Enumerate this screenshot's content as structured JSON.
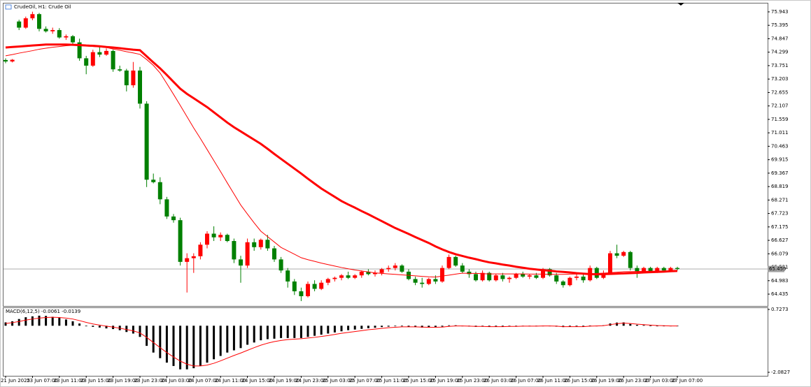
{
  "chart_data": [
    {
      "type": "candlestick",
      "title": "CrudeOil, H1:  Crude Oil",
      "open": [
        73.98,
        73.92,
        75.55,
        75.3,
        75.68,
        75.85,
        75.25,
        75.15,
        75.2,
        74.9,
        74.95,
        74.7,
        74.05,
        73.75,
        74.3,
        74.2,
        74.35,
        73.6,
        73.55,
        72.95,
        73.55,
        72.2,
        69.1,
        69.0,
        68.3,
        67.6,
        67.45,
        65.75,
        65.9,
        65.98,
        66.45,
        66.9,
        66.75,
        66.85,
        66.6,
        65.85,
        65.6,
        66.55,
        66.35,
        66.65,
        66.3,
        65.85,
        65.4,
        64.95,
        64.55,
        64.35,
        64.85,
        64.65,
        64.9,
        65.05,
        65.1,
        65.2,
        65.1,
        65.2,
        65.35,
        65.25,
        65.3,
        65.45,
        65.5,
        65.6,
        65.35,
        65.05,
        64.9,
        64.85,
        65.05,
        64.95,
        65.5,
        65.95,
        65.6,
        65.35,
        65.25,
        65.0,
        65.3,
        65.0,
        65.2,
        65.05,
        65.1,
        65.25,
        65.15,
        65.2,
        65.1,
        65.45,
        65.2,
        64.95,
        64.8,
        65.1,
        65.15,
        65.0,
        65.5,
        65.1,
        65.3,
        66.1,
        66.0,
        66.15,
        65.5,
        65.35,
        65.5,
        65.35,
        65.5,
        65.4,
        65.5
      ],
      "high": [
        74.05,
        74.02,
        75.62,
        75.75,
        75.95,
        75.9,
        75.35,
        75.3,
        75.28,
        75.02,
        75.0,
        74.85,
        74.15,
        74.4,
        74.55,
        74.45,
        74.4,
        73.75,
        73.62,
        73.9,
        73.7,
        72.3,
        69.35,
        69.2,
        68.4,
        67.7,
        67.55,
        66.1,
        66.1,
        66.55,
        67.0,
        67.2,
        66.95,
        66.9,
        66.7,
        66.0,
        66.7,
        66.7,
        66.7,
        66.85,
        66.4,
        65.95,
        65.5,
        65.05,
        64.7,
        64.95,
        65.0,
        65.0,
        65.1,
        65.15,
        65.25,
        65.35,
        65.25,
        65.4,
        65.45,
        65.4,
        65.5,
        65.6,
        65.7,
        65.65,
        65.45,
        65.15,
        65.1,
        65.1,
        65.2,
        65.6,
        66.05,
        66.0,
        65.7,
        65.45,
        65.35,
        65.4,
        65.35,
        65.25,
        65.3,
        65.15,
        65.3,
        65.35,
        65.25,
        65.3,
        65.5,
        65.5,
        65.3,
        65.0,
        65.15,
        65.25,
        65.3,
        65.6,
        65.55,
        65.4,
        66.2,
        66.45,
        66.2,
        66.2,
        65.6,
        65.55,
        65.55,
        65.55,
        65.55,
        65.55,
        65.55
      ],
      "low": [
        73.85,
        73.88,
        75.2,
        75.25,
        75.6,
        75.15,
        75.1,
        75.05,
        74.85,
        74.8,
        74.6,
        73.95,
        73.4,
        73.7,
        74.1,
        74.15,
        73.5,
        73.5,
        72.7,
        72.85,
        72.0,
        68.8,
        68.95,
        68.1,
        67.5,
        67.35,
        65.6,
        64.5,
        65.3,
        65.85,
        66.3,
        66.6,
        66.6,
        66.55,
        65.7,
        64.9,
        65.5,
        66.2,
        66.25,
        66.2,
        65.75,
        65.3,
        64.7,
        64.4,
        64.15,
        64.3,
        64.55,
        64.6,
        64.8,
        64.95,
        65.0,
        65.05,
        65.05,
        65.1,
        65.2,
        65.15,
        65.2,
        65.35,
        65.4,
        65.3,
        65.0,
        64.8,
        64.7,
        64.8,
        64.85,
        64.9,
        65.45,
        65.55,
        65.3,
        65.1,
        64.95,
        64.95,
        64.95,
        64.95,
        64.95,
        64.9,
        65.05,
        65.1,
        65.05,
        65.05,
        65.05,
        65.15,
        64.85,
        64.7,
        64.75,
        65.0,
        64.9,
        64.95,
        65.05,
        65.05,
        65.25,
        65.9,
        65.95,
        65.4,
        65.1,
        65.3,
        65.3,
        65.3,
        65.35,
        65.35,
        65.4
      ],
      "close": [
        73.92,
        73.99,
        75.3,
        75.68,
        75.85,
        75.25,
        75.15,
        75.2,
        74.9,
        74.95,
        74.7,
        74.05,
        73.75,
        74.3,
        74.2,
        74.35,
        73.6,
        73.55,
        72.95,
        73.55,
        72.2,
        69.1,
        69.0,
        68.3,
        67.6,
        67.45,
        65.75,
        65.9,
        65.98,
        66.45,
        66.9,
        66.75,
        66.85,
        66.6,
        65.85,
        65.6,
        66.55,
        66.35,
        66.65,
        66.3,
        65.85,
        65.4,
        64.95,
        64.55,
        64.35,
        64.85,
        64.65,
        64.9,
        65.05,
        65.1,
        65.2,
        65.1,
        65.2,
        65.35,
        65.25,
        65.3,
        65.45,
        65.5,
        65.6,
        65.35,
        65.05,
        64.9,
        64.85,
        65.05,
        64.95,
        65.5,
        65.95,
        65.6,
        65.35,
        65.25,
        65.0,
        65.3,
        65.0,
        65.2,
        65.05,
        65.1,
        65.25,
        65.15,
        65.2,
        65.1,
        65.45,
        65.2,
        64.95,
        64.8,
        65.1,
        65.15,
        65.0,
        65.5,
        65.1,
        65.3,
        66.1,
        66.0,
        66.15,
        65.5,
        65.35,
        65.5,
        65.35,
        65.5,
        65.4,
        65.5,
        65.46
      ],
      "up_color": "#ff0000",
      "down_color": "#008000",
      "overlays": [
        {
          "color": "#ff0000",
          "values": [
            74.49,
            74.51,
            74.53,
            74.55,
            74.57,
            74.59,
            74.61,
            74.61,
            74.61,
            74.61,
            74.6,
            74.59,
            74.57,
            74.56,
            74.54,
            74.51,
            74.49,
            74.46,
            74.43,
            74.4,
            74.38,
            74.13,
            73.88,
            73.64,
            73.37,
            73.09,
            72.81,
            72.6,
            72.42,
            72.24,
            72.06,
            71.85,
            71.64,
            71.43,
            71.24,
            71.07,
            70.9,
            70.73,
            70.56,
            70.36,
            70.15,
            69.95,
            69.75,
            69.55,
            69.35,
            69.14,
            68.94,
            68.74,
            68.57,
            68.4,
            68.23,
            68.09,
            67.96,
            67.82,
            67.69,
            67.55,
            67.41,
            67.27,
            67.13,
            67.01,
            66.89,
            66.76,
            66.64,
            66.52,
            66.38,
            66.26,
            66.15,
            66.06,
            65.99,
            65.92,
            65.86,
            65.79,
            65.73,
            65.69,
            65.64,
            65.6,
            65.55,
            65.51,
            65.47,
            65.44,
            65.41,
            65.39,
            65.36,
            65.34,
            65.32,
            65.29,
            65.27,
            65.25,
            65.24,
            65.25,
            65.26,
            65.27,
            65.28,
            65.29,
            65.3,
            65.32,
            65.33,
            65.34,
            65.35,
            65.37,
            65.38
          ]
        },
        {
          "color": "#ff0000",
          "values": [
            74.15,
            74.2,
            74.26,
            74.31,
            74.36,
            74.42,
            74.46,
            74.5,
            74.53,
            74.56,
            74.58,
            74.56,
            74.55,
            74.53,
            74.51,
            74.49,
            74.43,
            74.38,
            74.32,
            74.27,
            74.21,
            74.0,
            73.76,
            73.45,
            73.02,
            72.58,
            72.13,
            71.67,
            71.21,
            70.78,
            70.33,
            69.88,
            69.43,
            68.97,
            68.52,
            68.07,
            67.7,
            67.34,
            67.0,
            66.78,
            66.56,
            66.34,
            66.2,
            66.06,
            65.92,
            65.84,
            65.77,
            65.7,
            65.64,
            65.58,
            65.52,
            65.47,
            65.42,
            65.38,
            65.34,
            65.3,
            65.28,
            65.26,
            65.24,
            65.22,
            65.2,
            65.18,
            65.16,
            65.14,
            65.13,
            65.17,
            65.21,
            65.25,
            65.29,
            65.28,
            65.28,
            65.27,
            65.26,
            65.26,
            65.26,
            65.26,
            65.26,
            65.26,
            65.25,
            65.25,
            65.25,
            65.24,
            65.24,
            65.24,
            65.25,
            65.25,
            65.25,
            65.26,
            65.28,
            65.29,
            65.31,
            65.33,
            65.35,
            65.35,
            65.36,
            65.37,
            65.37,
            65.38,
            65.38,
            65.39,
            65.4
          ]
        }
      ],
      "current_price": 65.459,
      "current_color": "#a0a0a0",
      "ylim": [
        63.952,
        76.284
      ],
      "yticks": [
        75.943,
        75.395,
        74.847,
        74.299,
        73.751,
        73.203,
        72.655,
        72.107,
        71.559,
        71.011,
        70.463,
        69.915,
        69.367,
        68.819,
        68.271,
        67.723,
        67.175,
        66.627,
        66.079,
        65.531,
        64.983,
        64.435
      ]
    },
    {
      "type": "macd",
      "title": "MACD(6,12,5) -0.0061 -0.0139",
      "color": "#000000",
      "categories": [
        "21 Jun 2025",
        null,
        null,
        null,
        "23 Jun 07:00",
        null,
        null,
        null,
        "23 Jun 11:00",
        null,
        null,
        null,
        "23 Jun 15:00",
        null,
        null,
        null,
        "23 Jun 19:00",
        null,
        null,
        null,
        "23 Jun 23:00",
        null,
        null,
        null,
        "24 Jun 03:00",
        null,
        null,
        null,
        "24 Jun 07:00",
        null,
        null,
        null,
        "24 Jun 11:00",
        null,
        null,
        null,
        "24 Jun 15:00",
        null,
        null,
        null,
        "24 Jun 19:00",
        null,
        null,
        null,
        "24 Jun 23:00",
        null,
        null,
        null,
        "25 Jun 03:00",
        null,
        null,
        null,
        "25 Jun 07:00",
        null,
        null,
        null,
        "25 Jun 11:00",
        null,
        null,
        null,
        "25 Jun 15:00",
        null,
        null,
        null,
        "25 Jun 19:00",
        null,
        null,
        null,
        "25 Jun 23:00",
        null,
        null,
        null,
        "26 Jun 03:00",
        null,
        null,
        null,
        "26 Jun 07:00",
        null,
        null,
        null,
        "26 Jun 11:00",
        null,
        null,
        null,
        "26 Jun 15:00",
        null,
        null,
        null,
        "26 Jun 19:00",
        null,
        null,
        null,
        "26 Jun 23:00",
        null,
        null,
        null,
        "27 Jun 03:00",
        null,
        null,
        null,
        "27 Jun 07:00"
      ],
      "values": [
        0.15,
        0.2,
        0.3,
        0.38,
        0.42,
        0.45,
        0.44,
        0.4,
        0.35,
        0.28,
        0.2,
        0.1,
        0.0,
        -0.05,
        -0.08,
        -0.12,
        -0.15,
        -0.2,
        -0.28,
        -0.35,
        -0.5,
        -0.9,
        -1.2,
        -1.45,
        -1.65,
        -1.8,
        -1.95,
        -1.95,
        -1.9,
        -1.8,
        -1.65,
        -1.5,
        -1.35,
        -1.2,
        -1.1,
        -1.0,
        -0.85,
        -0.75,
        -0.65,
        -0.6,
        -0.58,
        -0.55,
        -0.55,
        -0.55,
        -0.55,
        -0.5,
        -0.45,
        -0.4,
        -0.35,
        -0.3,
        -0.25,
        -0.2,
        -0.17,
        -0.14,
        -0.11,
        -0.09,
        -0.06,
        -0.04,
        -0.02,
        -0.02,
        -0.04,
        -0.06,
        -0.08,
        -0.08,
        -0.08,
        -0.04,
        0.02,
        0.02,
        -0.01,
        -0.03,
        -0.05,
        -0.04,
        -0.05,
        -0.04,
        -0.04,
        -0.03,
        -0.02,
        -0.02,
        -0.02,
        -0.02,
        0.0,
        -0.01,
        -0.04,
        -0.06,
        -0.04,
        -0.03,
        -0.04,
        0.01,
        -0.01,
        0.02,
        0.1,
        0.14,
        0.15,
        0.08,
        0.04,
        0.03,
        0.01,
        0.0,
        -0.01,
        -0.01,
        -0.01
      ],
      "signal": {
        "color": "#ff0000",
        "values": [
          0.1,
          0.14,
          0.19,
          0.25,
          0.3,
          0.34,
          0.37,
          0.38,
          0.37,
          0.34,
          0.3,
          0.23,
          0.15,
          0.08,
          0.03,
          -0.02,
          -0.06,
          -0.11,
          -0.17,
          -0.23,
          -0.32,
          -0.52,
          -0.75,
          -0.98,
          -1.2,
          -1.4,
          -1.58,
          -1.72,
          -1.8,
          -1.8,
          -1.76,
          -1.68,
          -1.57,
          -1.45,
          -1.33,
          -1.22,
          -1.1,
          -0.98,
          -0.87,
          -0.78,
          -0.71,
          -0.66,
          -0.62,
          -0.6,
          -0.58,
          -0.55,
          -0.52,
          -0.48,
          -0.44,
          -0.39,
          -0.34,
          -0.3,
          -0.26,
          -0.22,
          -0.18,
          -0.15,
          -0.12,
          -0.09,
          -0.07,
          -0.05,
          -0.05,
          -0.05,
          -0.06,
          -0.07,
          -0.07,
          -0.06,
          -0.03,
          -0.01,
          -0.01,
          -0.02,
          -0.03,
          -0.03,
          -0.04,
          -0.04,
          -0.04,
          -0.03,
          -0.03,
          -0.02,
          -0.02,
          -0.02,
          -0.01,
          -0.01,
          -0.02,
          -0.04,
          -0.04,
          -0.04,
          -0.04,
          -0.02,
          -0.01,
          0.0,
          0.05,
          0.09,
          0.12,
          0.1,
          0.07,
          0.05,
          0.03,
          0.01,
          0.0,
          -0.01,
          -0.01
        ]
      },
      "ylim": [
        -2.24,
        0.79
      ],
      "yticks": [
        0.7273,
        -2.0827
      ]
    }
  ]
}
